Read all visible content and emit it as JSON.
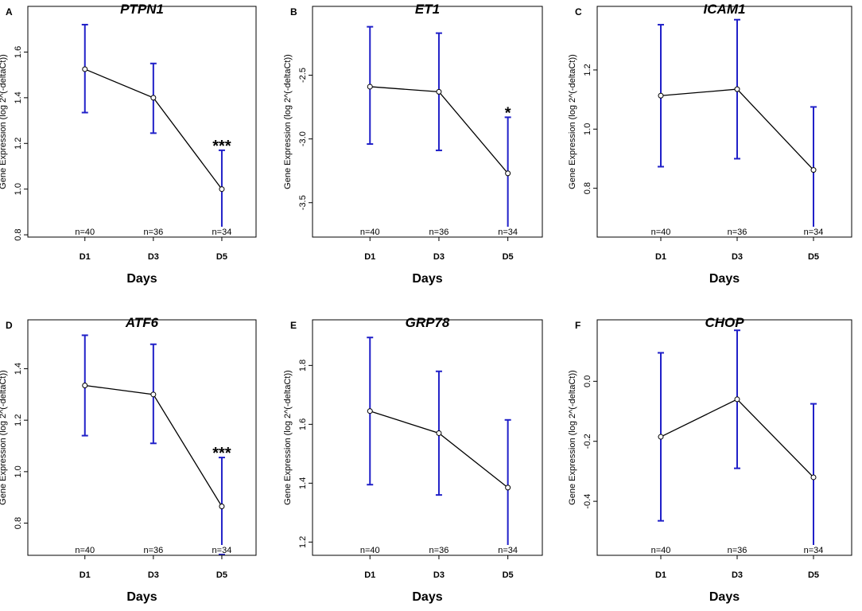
{
  "figure": {
    "colors": {
      "errorbar": "#2020c8",
      "line": "#000000",
      "axis": "#000000"
    }
  },
  "chart_data": [
    {
      "type": "line",
      "panel": "A",
      "title": "PTPN1",
      "xlabel": "Days",
      "ylabel": "Gene Expression (log 2^(-deltaCt))",
      "categories": [
        "D1",
        "D3",
        "D5"
      ],
      "values": [
        1.525,
        1.4,
        1.0
      ],
      "err_low": [
        1.335,
        1.245,
        0.83
      ],
      "err_high": [
        1.72,
        1.55,
        1.17
      ],
      "ylim": [
        0.79,
        1.8
      ],
      "yticks": [
        0.8,
        1.0,
        1.2,
        1.4,
        1.6
      ],
      "ytick_labels": [
        "0.8",
        "1.0",
        "1.2",
        "1.4",
        "1.6"
      ],
      "n_labels": [
        "n=40",
        "n=36",
        "n=34"
      ],
      "significance": {
        "index": 2,
        "text": "***"
      }
    },
    {
      "type": "line",
      "panel": "B",
      "title": "ET1",
      "xlabel": "Days",
      "ylabel": "Gene Expression (log 2^(-deltaCt))",
      "categories": [
        "D1",
        "D3",
        "D5"
      ],
      "values": [
        -2.59,
        -2.63,
        -3.27
      ],
      "err_low": [
        -3.04,
        -3.09,
        -3.71
      ],
      "err_high": [
        -2.12,
        -2.17,
        -2.83
      ],
      "ylim": [
        -3.77,
        -1.96
      ],
      "yticks": [
        -3.5,
        -3.0,
        -2.5
      ],
      "ytick_labels": [
        "-3.5",
        "-3.0",
        "-2.5"
      ],
      "n_labels": [
        "n=40",
        "n=36",
        "n=34"
      ],
      "significance": {
        "index": 2,
        "text": "*"
      }
    },
    {
      "type": "line",
      "panel": "C",
      "title": "ICAM1",
      "xlabel": "Days",
      "ylabel": "Gene Expression (log 2^(-deltaCt))",
      "categories": [
        "D1",
        "D3",
        "D5"
      ],
      "values": [
        1.113,
        1.135,
        0.862
      ],
      "err_low": [
        0.873,
        0.9,
        0.65
      ],
      "err_high": [
        1.353,
        1.37,
        1.075
      ],
      "ylim": [
        0.635,
        1.415
      ],
      "yticks": [
        0.8,
        1.0,
        1.2
      ],
      "ytick_labels": [
        "0.8",
        "1.0",
        "1.2"
      ],
      "n_labels": [
        "n=40",
        "n=36",
        "n=34"
      ],
      "significance": null
    },
    {
      "type": "line",
      "panel": "D",
      "title": "ATF6",
      "xlabel": "Days",
      "ylabel": "Gene Expression (log 2^(-deltaCt))",
      "categories": [
        "D1",
        "D3",
        "D5"
      ],
      "values": [
        1.335,
        1.3,
        0.865
      ],
      "err_low": [
        1.14,
        1.11,
        0.68
      ],
      "err_high": [
        1.53,
        1.495,
        1.055
      ],
      "ylim": [
        0.675,
        1.59
      ],
      "yticks": [
        0.8,
        1.0,
        1.2,
        1.4
      ],
      "ytick_labels": [
        "0.8",
        "1.0",
        "1.2",
        "1.4"
      ],
      "n_labels": [
        "n=40",
        "n=36",
        "n=34"
      ],
      "significance": {
        "index": 2,
        "text": "***"
      }
    },
    {
      "type": "line",
      "panel": "E",
      "title": "GRP78",
      "xlabel": "Days",
      "ylabel": "Gene Expression (log 2^(-deltaCt))",
      "categories": [
        "D1",
        "D3",
        "D5"
      ],
      "values": [
        1.645,
        1.57,
        1.385
      ],
      "err_low": [
        1.395,
        1.36,
        1.165
      ],
      "err_high": [
        1.895,
        1.78,
        1.615
      ],
      "ylim": [
        1.155,
        1.955
      ],
      "yticks": [
        1.2,
        1.4,
        1.6,
        1.8
      ],
      "ytick_labels": [
        "1.2",
        "1.4",
        "1.6",
        "1.8"
      ],
      "n_labels": [
        "n=40",
        "n=36",
        "n=34"
      ],
      "significance": null
    },
    {
      "type": "line",
      "panel": "F",
      "title": "CHOP",
      "xlabel": "Days",
      "ylabel": "Gene Expression (log 2^(-deltaCt))",
      "categories": [
        "D1",
        "D3",
        "D5"
      ],
      "values": [
        -0.185,
        -0.06,
        -0.32
      ],
      "err_low": [
        -0.465,
        -0.29,
        -0.565
      ],
      "err_high": [
        0.095,
        0.17,
        -0.075
      ],
      "ylim": [
        -0.58,
        0.205
      ],
      "yticks": [
        -0.4,
        -0.2,
        0.0
      ],
      "ytick_labels": [
        "-0.4",
        "-0.2",
        "0.0"
      ],
      "n_labels": [
        "n=40",
        "n=36",
        "n=34"
      ],
      "significance": null
    }
  ]
}
